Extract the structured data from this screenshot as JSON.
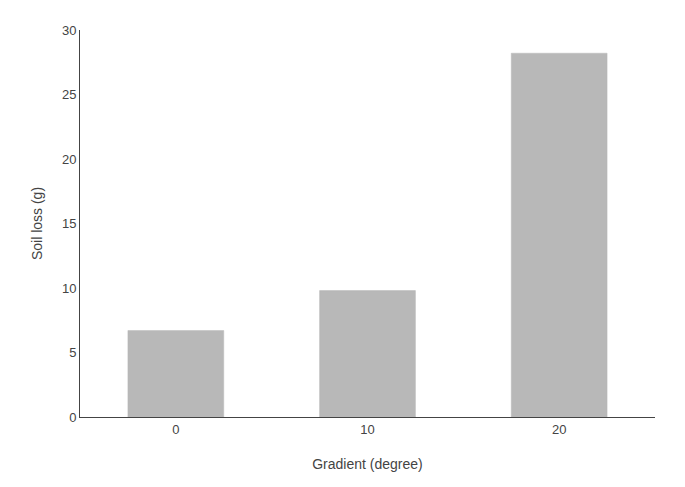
{
  "chart_data": {
    "type": "bar",
    "xlabel": "Gradient (degree)",
    "ylabel": "Soil loss (g)",
    "categories": [
      "0",
      "10",
      "20"
    ],
    "values": [
      6.7,
      9.8,
      28.2
    ],
    "color": "#b8b8b8",
    "ylim": [
      0,
      30
    ],
    "yticks": [
      0,
      5,
      10,
      15,
      20,
      25,
      30
    ],
    "grid": false
  }
}
